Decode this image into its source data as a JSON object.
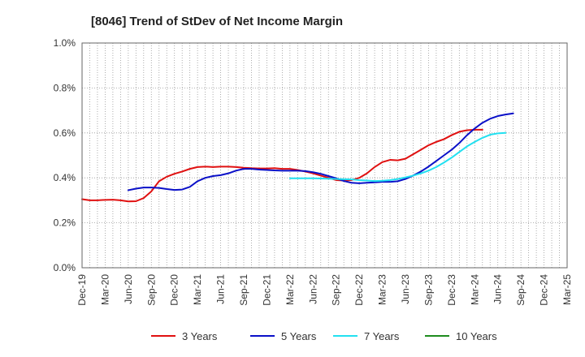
{
  "chart_data": {
    "type": "line",
    "title": "[8046]  Trend of StDev of Net Income Margin",
    "xlabel": "",
    "ylabel": "",
    "ylim": [
      0,
      1.0
    ],
    "yticks": [
      "0.0%",
      "0.2%",
      "0.4%",
      "0.6%",
      "0.8%",
      "1.0%"
    ],
    "ytick_values": [
      0,
      0.2,
      0.4,
      0.6,
      0.8,
      1.0
    ],
    "xticks": [
      "Dec-19",
      "Mar-20",
      "Jun-20",
      "Sep-20",
      "Dec-20",
      "Mar-21",
      "Jun-21",
      "Sep-21",
      "Dec-21",
      "Mar-22",
      "Jun-22",
      "Sep-22",
      "Dec-22",
      "Mar-23",
      "Jun-23",
      "Sep-23",
      "Dec-23",
      "Mar-24",
      "Jun-24",
      "Sep-24",
      "Dec-24",
      "Mar-25"
    ],
    "grid": true,
    "legend_position": "bottom",
    "series": [
      {
        "name": "3 Years",
        "color": "#e01010",
        "start": "Dec-19",
        "values": [
          0.305,
          0.3,
          0.3,
          0.302,
          0.303,
          0.3,
          0.295,
          0.296,
          0.31,
          0.34,
          0.385,
          0.405,
          0.418,
          0.428,
          0.44,
          0.448,
          0.45,
          0.448,
          0.45,
          0.45,
          0.448,
          0.445,
          0.443,
          0.442,
          0.442,
          0.443,
          0.44,
          0.44,
          0.435,
          0.428,
          0.42,
          0.41,
          0.4,
          0.39,
          0.388,
          0.39,
          0.4,
          0.42,
          0.448,
          0.47,
          0.48,
          0.478,
          0.485,
          0.505,
          0.525,
          0.545,
          0.56,
          0.572,
          0.59,
          0.605,
          0.612,
          0.614,
          0.614
        ]
      },
      {
        "name": "5 Years",
        "color": "#0a10c8",
        "start": "Jun-20",
        "values": [
          0.345,
          0.352,
          0.357,
          0.357,
          0.355,
          0.35,
          0.346,
          0.348,
          0.36,
          0.385,
          0.4,
          0.408,
          0.412,
          0.42,
          0.432,
          0.44,
          0.44,
          0.437,
          0.435,
          0.433,
          0.432,
          0.432,
          0.432,
          0.43,
          0.425,
          0.418,
          0.408,
          0.398,
          0.386,
          0.378,
          0.376,
          0.378,
          0.38,
          0.382,
          0.382,
          0.385,
          0.395,
          0.41,
          0.428,
          0.45,
          0.475,
          0.5,
          0.525,
          0.555,
          0.59,
          0.62,
          0.645,
          0.663,
          0.675,
          0.682,
          0.687
        ]
      },
      {
        "name": "7 Years",
        "color": "#22e0f0",
        "start": "Mar-22",
        "values": [
          0.398,
          0.398,
          0.398,
          0.398,
          0.397,
          0.396,
          0.395,
          0.394,
          0.393,
          0.39,
          0.388,
          0.386,
          0.387,
          0.39,
          0.395,
          0.402,
          0.41,
          0.42,
          0.432,
          0.448,
          0.468,
          0.49,
          0.515,
          0.54,
          0.56,
          0.578,
          0.592,
          0.598,
          0.6
        ]
      },
      {
        "name": "10 Years",
        "color": "#1e8c1e",
        "values": []
      }
    ]
  }
}
